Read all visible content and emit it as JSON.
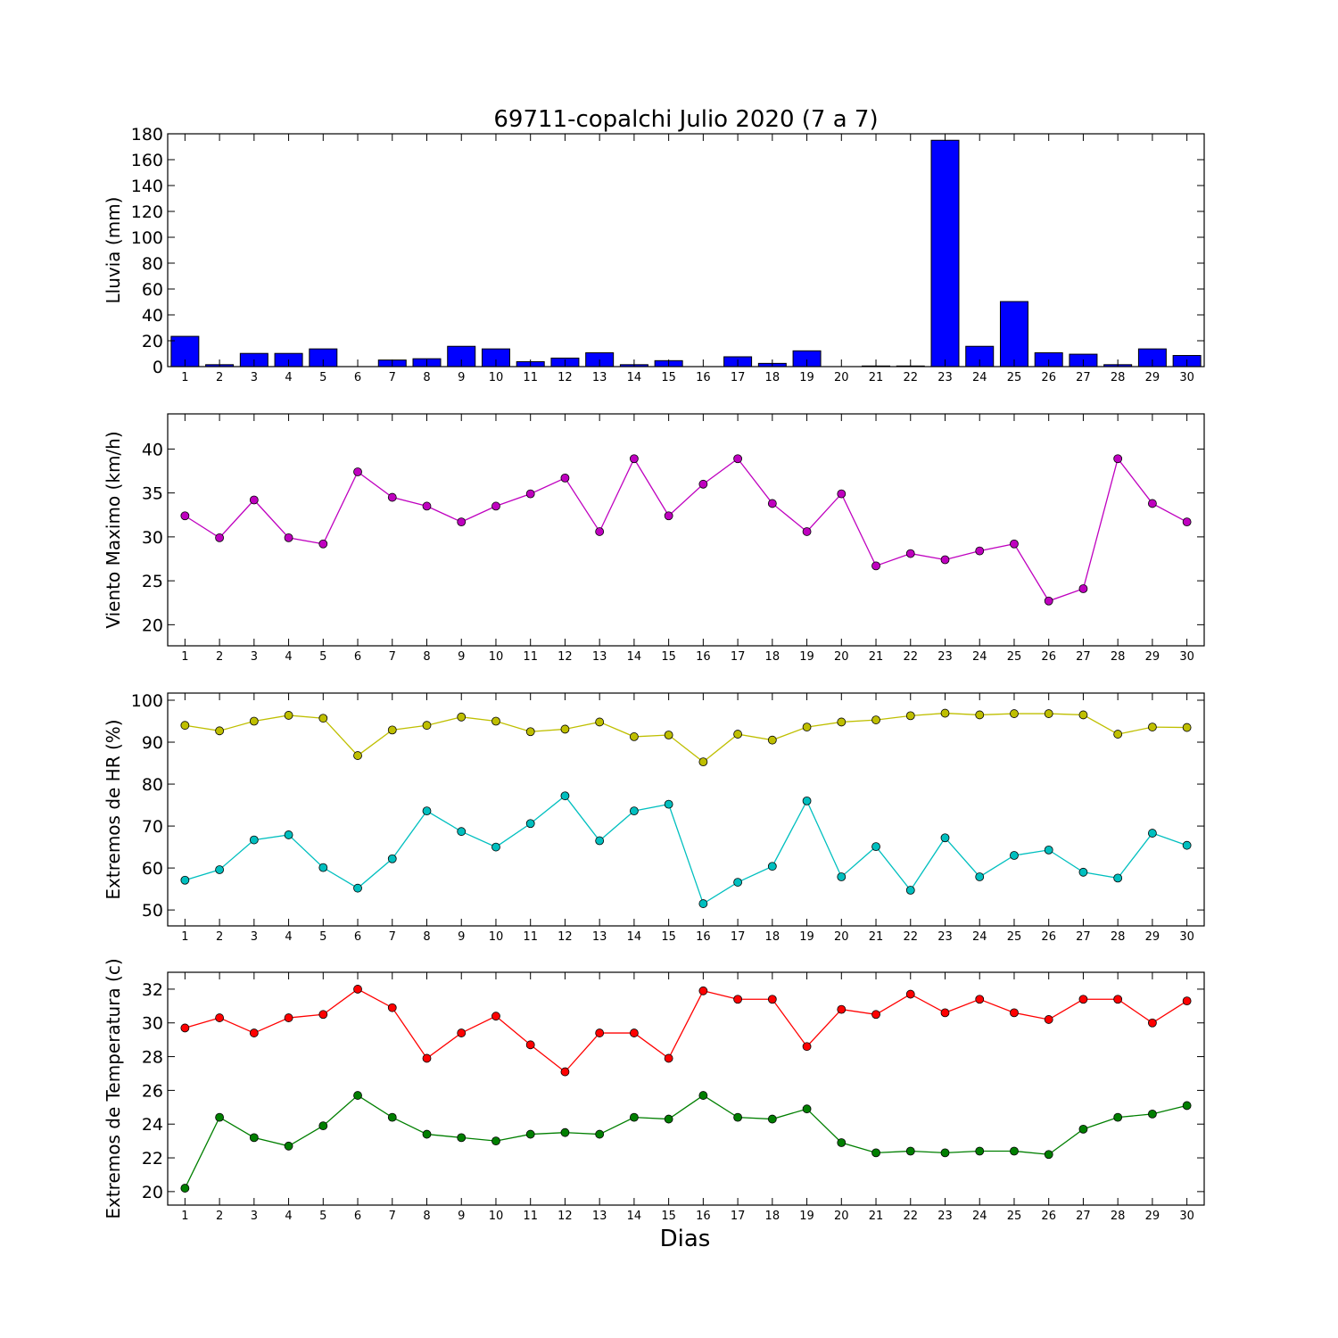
{
  "chart_data": {
    "type": "multi-panel",
    "title": "69711-copalchi Julio 2020  (7 a 7)",
    "xlabel": "Dias",
    "days": [
      1,
      2,
      3,
      4,
      5,
      6,
      7,
      8,
      9,
      10,
      11,
      12,
      13,
      14,
      15,
      16,
      17,
      18,
      19,
      20,
      21,
      22,
      23,
      24,
      25,
      26,
      27,
      28,
      29,
      30
    ],
    "panels": [
      {
        "type": "bar",
        "ylabel": "Lluvia (mm)",
        "ylim": [
          0,
          180
        ],
        "yticks": [
          0,
          20,
          40,
          60,
          80,
          100,
          120,
          140,
          160,
          180
        ],
        "series": [
          {
            "color": "#0000ff",
            "values": [
              23.4,
              1.5,
              10.2,
              10.2,
              13.7,
              0,
              5.1,
              6.1,
              15.7,
              13.7,
              3.8,
              6.6,
              10.7,
              1.5,
              4.6,
              0,
              7.6,
              2.5,
              12.2,
              0,
              0.5,
              0.5,
              175.0,
              15.7,
              50.3,
              10.7,
              9.6,
              1.5,
              13.7,
              8.6
            ]
          }
        ]
      },
      {
        "type": "line",
        "ylabel": "Viento Maximo (km/h)",
        "ylim": [
          17.6,
          44.0
        ],
        "yticks": [
          20,
          25,
          30,
          35,
          40
        ],
        "series": [
          {
            "color": "#bf00bf",
            "values": [
              32.4,
              29.9,
              34.2,
              29.9,
              29.2,
              37.4,
              34.5,
              33.5,
              31.7,
              33.5,
              34.9,
              36.7,
              30.6,
              38.9,
              32.4,
              36.0,
              38.9,
              33.8,
              30.6,
              34.9,
              26.7,
              28.1,
              27.4,
              28.4,
              29.2,
              22.7,
              24.1,
              38.9,
              33.8,
              31.7
            ]
          }
        ]
      },
      {
        "type": "line",
        "ylabel": "Extremos de HR (%)",
        "ylim": [
          46.2,
          101.7
        ],
        "yticks": [
          50,
          60,
          70,
          80,
          90,
          100
        ],
        "series": [
          {
            "color": "#bfbf00",
            "values": [
              94.0,
              92.7,
              95.0,
              96.4,
              95.7,
              86.8,
              92.9,
              94.0,
              96.0,
              95.0,
              92.5,
              93.1,
              94.8,
              91.3,
              91.7,
              85.3,
              91.9,
              90.5,
              93.6,
              94.8,
              95.3,
              96.3,
              96.9,
              96.5,
              96.8,
              96.8,
              96.5,
              91.9,
              93.6,
              93.5
            ]
          },
          {
            "color": "#00bfbf",
            "values": [
              57.1,
              59.6,
              66.7,
              67.9,
              60.1,
              55.2,
              62.2,
              73.6,
              68.7,
              65.0,
              70.6,
              77.2,
              66.5,
              73.6,
              75.2,
              51.5,
              56.6,
              60.4,
              76.0,
              57.9,
              65.1,
              54.7,
              67.2,
              57.9,
              63.0,
              64.3,
              59.0,
              57.6,
              68.3,
              65.4
            ]
          }
        ]
      },
      {
        "type": "line",
        "ylabel": "Extremos de Temperatura (c)",
        "ylim": [
          19.2,
          33.0
        ],
        "yticks": [
          20,
          22,
          24,
          26,
          28,
          30,
          32
        ],
        "series": [
          {
            "color": "#ff0000",
            "values": [
              29.7,
              30.3,
              29.4,
              30.3,
              30.5,
              32.0,
              30.9,
              27.9,
              29.4,
              30.4,
              28.7,
              27.1,
              29.4,
              29.4,
              27.9,
              31.9,
              31.4,
              31.4,
              28.6,
              30.8,
              30.5,
              31.7,
              30.6,
              31.4,
              30.6,
              30.2,
              31.4,
              31.4,
              30.0,
              31.3
            ]
          },
          {
            "color": "#007f00",
            "values": [
              20.2,
              24.4,
              23.2,
              22.7,
              23.9,
              25.7,
              24.4,
              23.4,
              23.2,
              23.0,
              23.4,
              23.5,
              23.4,
              24.4,
              24.3,
              25.7,
              24.4,
              24.3,
              24.9,
              22.9,
              22.3,
              22.4,
              22.3,
              22.4,
              22.4,
              22.2,
              23.7,
              24.4,
              24.6,
              25.1
            ]
          }
        ]
      }
    ]
  }
}
